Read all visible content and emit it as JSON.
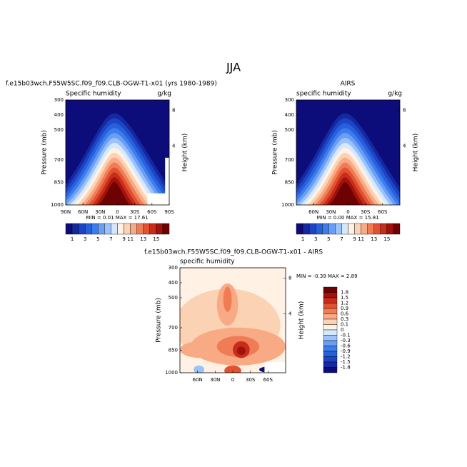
{
  "title": "JJA",
  "chart_data": [
    {
      "type": "contour",
      "title": "f.e15b03wch.F55W5SC.f09_f09.CLB-OGW-T1-x01 (yrs 1980-1989)",
      "subtitle": "Specific humidity",
      "units": "g/kg",
      "ylabel": "Pressure (mb)",
      "y2label": "Height (km)",
      "stats": "MIN = 0.01 MAX = 17.61",
      "xlim": [
        90,
        -90
      ],
      "xticks": [
        {
          "value": 90,
          "label": "90N"
        },
        {
          "value": 60,
          "label": "60N"
        },
        {
          "value": 30,
          "label": "30N"
        },
        0,
        {
          "value": -30,
          "label": "30S"
        },
        {
          "value": -60,
          "label": "60S"
        },
        {
          "value": -90,
          "label": "90S"
        }
      ],
      "ylim": [
        1000,
        300
      ],
      "yticks": [
        300,
        400,
        500,
        700,
        850,
        1000
      ],
      "y2ticks": [
        4,
        8
      ],
      "colorbar": {
        "orientation": "horizontal",
        "colors": [
          "#0c0c7a",
          "#1428a0",
          "#1c44c4",
          "#2860dc",
          "#3c7cec",
          "#6a9ef4",
          "#9cc2fa",
          "#d4e8ff",
          "#fff2e4",
          "#fcd2b4",
          "#f8aa84",
          "#f07c56",
          "#e05232",
          "#c82c1a",
          "#a0120a",
          "#6e0202"
        ],
        "labels": [
          1,
          3,
          5,
          7,
          9,
          11,
          13,
          15
        ]
      }
    },
    {
      "type": "contour",
      "title": "AIRS",
      "subtitle": "specific humidity",
      "units": "g/kg",
      "ylabel": "Pressure (mb)",
      "y2label": "Height (km)",
      "stats": "MIN = 0.00 MAX = 15.81",
      "xlim": [
        90,
        -90
      ],
      "xticks": [
        {
          "value": 60,
          "label": "60N"
        },
        {
          "value": 30,
          "label": "30N"
        },
        0,
        {
          "value": -30,
          "label": "30S"
        },
        {
          "value": -60,
          "label": "60S"
        }
      ],
      "ylim": [
        1000,
        300
      ],
      "yticks": [
        300,
        400,
        500,
        700,
        850,
        1000
      ],
      "y2ticks": [
        4,
        8
      ],
      "colorbar": {
        "orientation": "horizontal",
        "colors": [
          "#0c0c7a",
          "#1428a0",
          "#1c44c4",
          "#2860dc",
          "#3c7cec",
          "#6a9ef4",
          "#9cc2fa",
          "#d4e8ff",
          "#fff2e4",
          "#fcd2b4",
          "#f8aa84",
          "#f07c56",
          "#e05232",
          "#c82c1a",
          "#a0120a",
          "#6e0202"
        ],
        "labels": [
          1,
          3,
          5,
          7,
          9,
          11,
          13,
          15
        ]
      }
    },
    {
      "type": "difference",
      "title": "f.e15b03wch.F55W5SC.f09_f09.CLB-OGW-T1-x01 - AIRS",
      "subtitle": "specific humidity",
      "ylabel": "Pressure (mb)",
      "y2label": "Height (km)",
      "stats": "MIN = -0.39 MAX = 2.89",
      "xlim": [
        90,
        -90
      ],
      "xticks": [
        {
          "value": 60,
          "label": "60N"
        },
        {
          "value": 30,
          "label": "30N"
        },
        0,
        {
          "value": -30,
          "label": "30S"
        },
        {
          "value": -60,
          "label": "60S"
        }
      ],
      "ylim": [
        1000,
        300
      ],
      "yticks": [
        300,
        400,
        500,
        700,
        850,
        1000
      ],
      "y2ticks": [
        4,
        8
      ],
      "colorbar": {
        "orientation": "vertical",
        "colors": [
          "#6e0202",
          "#a0120a",
          "#c82c1a",
          "#e05232",
          "#f07c56",
          "#f8aa84",
          "#fcd2b4",
          "#fff2e4",
          "#d4e8ff",
          "#9cc2fa",
          "#6a9ef4",
          "#3c7cec",
          "#2860dc",
          "#1c44c4",
          "#1428a0",
          "#0c0c7a"
        ],
        "labels": [
          1.8,
          1.5,
          1.2,
          0.9,
          0.6,
          0.3,
          0.1,
          0,
          -0.1,
          -0.3,
          -0.6,
          -0.9,
          -1.2,
          -1.5,
          -1.8
        ]
      }
    }
  ]
}
